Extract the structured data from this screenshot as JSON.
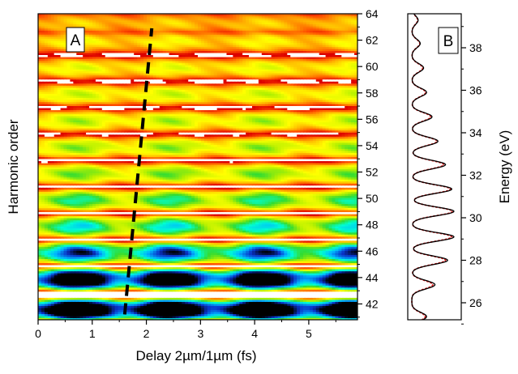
{
  "chart_data": [
    {
      "type": "heatmap",
      "panel_label": "A",
      "xlabel": "Delay 2µm/1µm (fs)",
      "ylabel": "Harmonic order",
      "xlim": [
        0,
        5.9
      ],
      "ylim": [
        40.8,
        64
      ],
      "x_ticks": [
        0,
        1,
        2,
        3,
        4,
        5
      ],
      "x_tick_labels": [
        "0",
        "1",
        "2",
        "3",
        "4",
        "5"
      ],
      "y_ticks": [
        42,
        44,
        46,
        48,
        50,
        52,
        54,
        56,
        58,
        60,
        62,
        64
      ],
      "y_tick_labels": [
        "42",
        "44",
        "46",
        "48",
        "50",
        "52",
        "54",
        "56",
        "58",
        "60",
        "62",
        "64"
      ],
      "y_axis_side": "right",
      "colormap": [
        "#000000",
        "#0a32c8",
        "#00b4ff",
        "#00ffd2",
        "#32dc32",
        "#b4f000",
        "#ffff00",
        "#ffb400",
        "#ff5000",
        "#dc0000"
      ],
      "harmonic_rows": [
        {
          "order": 41.6,
          "base": 0.12,
          "mod": 0.55
        },
        {
          "order": 43.9,
          "base": 0.2,
          "mod": 0.55
        },
        {
          "order": 45.9,
          "base": 0.4,
          "mod": 0.4
        },
        {
          "order": 47.9,
          "base": 0.52,
          "mod": 0.3
        },
        {
          "order": 49.9,
          "base": 0.56,
          "mod": 0.25
        },
        {
          "order": 51.9,
          "base": 0.6,
          "mod": 0.18
        },
        {
          "order": 53.9,
          "base": 0.62,
          "mod": 0.16
        },
        {
          "order": 55.9,
          "base": 0.64,
          "mod": 0.15
        },
        {
          "order": 57.9,
          "base": 0.65,
          "mod": 0.12
        },
        {
          "order": 59.9,
          "base": 0.67,
          "mod": 0.1
        },
        {
          "order": 61.9,
          "base": 0.7,
          "mod": 0.1
        },
        {
          "order": 63.3,
          "base": 0.74,
          "mod": 0.08
        }
      ],
      "modulation_period_fs": 1.7,
      "dashed_line": {
        "x": [
          1.6,
          2.1
        ],
        "y": [
          41.2,
          62.9
        ],
        "color": "#000000"
      }
    },
    {
      "type": "line",
      "panel_label": "B",
      "ylabel": "Energy (eV)",
      "ylim": [
        25.2,
        39.6
      ],
      "y_ticks": [
        26,
        28,
        30,
        32,
        34,
        36,
        38
      ],
      "y_tick_labels": [
        "26",
        "28",
        "30",
        "32",
        "34",
        "36",
        "38"
      ],
      "y_axis_side": "right",
      "orientation": "vertical",
      "series": [
        {
          "style": "solid",
          "color": "#000000",
          "peaks": [
            {
              "energy": 25.35,
              "height": 0.35
            },
            {
              "energy": 26.85,
              "height": 0.55
            },
            {
              "energy": 28.0,
              "height": 0.85
            },
            {
              "energy": 29.1,
              "height": 1.0
            },
            {
              "energy": 30.3,
              "height": 1.0
            },
            {
              "energy": 31.35,
              "height": 0.95
            },
            {
              "energy": 32.5,
              "height": 0.8
            },
            {
              "energy": 33.6,
              "height": 0.62
            },
            {
              "energy": 34.75,
              "height": 0.48
            },
            {
              "energy": 35.9,
              "height": 0.35
            },
            {
              "energy": 37.05,
              "height": 0.28
            },
            {
              "energy": 38.2,
              "height": 0.2
            },
            {
              "energy": 39.3,
              "height": 0.15
            }
          ]
        },
        {
          "style": "dotted",
          "color": "#dc1e1e",
          "peaks": [
            {
              "energy": 25.35,
              "height": 0.32
            },
            {
              "energy": 26.85,
              "height": 0.5
            },
            {
              "energy": 28.0,
              "height": 0.8
            },
            {
              "energy": 29.1,
              "height": 0.95
            },
            {
              "energy": 30.3,
              "height": 0.97
            },
            {
              "energy": 31.35,
              "height": 0.92
            },
            {
              "energy": 32.5,
              "height": 0.76
            },
            {
              "energy": 33.6,
              "height": 0.6
            },
            {
              "energy": 34.75,
              "height": 0.45
            },
            {
              "energy": 35.9,
              "height": 0.33
            },
            {
              "energy": 37.05,
              "height": 0.26
            },
            {
              "energy": 38.2,
              "height": 0.19
            },
            {
              "energy": 39.3,
              "height": 0.14
            }
          ]
        }
      ]
    }
  ]
}
